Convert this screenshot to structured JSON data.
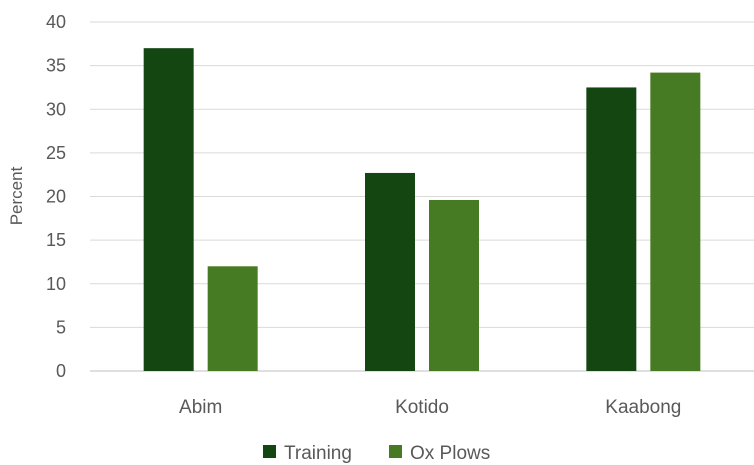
{
  "chart_data": {
    "type": "bar",
    "title": "",
    "xlabel": "",
    "ylabel": "Percent",
    "categories": [
      "Abim",
      "Kotido",
      "Kaabong"
    ],
    "series": [
      {
        "name": "Training",
        "color": "#134611",
        "values": [
          37,
          22.7,
          32.5
        ]
      },
      {
        "name": "Ox Plows",
        "color": "#467A23",
        "values": [
          12,
          19.6,
          34.2
        ]
      }
    ],
    "ylim": [
      0,
      40
    ],
    "yticks": [
      0,
      5,
      10,
      15,
      20,
      25,
      30,
      35,
      40
    ],
    "grid": true,
    "legend_position": "bottom"
  }
}
